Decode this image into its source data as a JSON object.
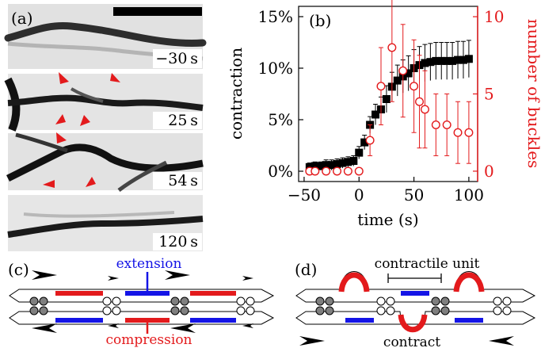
{
  "panel_a": {
    "label": "(a)",
    "frames": [
      {
        "time": "−30 s"
      },
      {
        "time": "25 s"
      },
      {
        "time": "54 s"
      },
      {
        "time": "120 s"
      }
    ]
  },
  "panel_b": {
    "label": "(b)"
  },
  "panel_c": {
    "label": "(c)",
    "extension_label": "extension",
    "compression_label": "compression"
  },
  "panel_d": {
    "label": "(d)",
    "unit_label": "contractile unit",
    "contract_label": "contract"
  },
  "colors": {
    "red": "#e31a1c",
    "blue": "#1414e6",
    "black": "#000000",
    "gray_motor": "#7f7f7f"
  },
  "chart_data": {
    "type": "scatter",
    "xlabel": "time (s)",
    "ylabel_left": "contraction",
    "ylabel_right": "number of buckles",
    "xlim": [
      -55,
      108
    ],
    "ylim_left": [
      -0.01,
      0.16
    ],
    "ylim_right": [
      -0.67,
      10.67
    ],
    "x_ticks": [
      -50,
      0,
      50,
      100
    ],
    "x_tick_labels": [
      "−50",
      "0",
      "50",
      "100"
    ],
    "y_left_ticks": [
      0,
      0.05,
      0.1,
      0.15
    ],
    "y_left_tick_labels": [
      "0%",
      "5%",
      "10%",
      "15%"
    ],
    "y_right_ticks": [
      0,
      5,
      10
    ],
    "y_right_tick_labels": [
      "0",
      "5",
      "10"
    ],
    "series": [
      {
        "marker": "filled-square",
        "axis": "left",
        "x": [
          -45,
          -40,
          -35,
          -30,
          -25,
          -20,
          -15,
          -10,
          -5,
          0,
          5,
          10,
          15,
          20,
          25,
          30,
          35,
          40,
          45,
          50,
          55,
          60,
          65,
          70,
          75,
          80,
          85,
          90,
          95,
          100
        ],
        "y": [
          0.004,
          0.005,
          0.005,
          0.006,
          0.006,
          0.007,
          0.008,
          0.009,
          0.01,
          0.018,
          0.028,
          0.045,
          0.055,
          0.06,
          0.07,
          0.082,
          0.088,
          0.092,
          0.095,
          0.1,
          0.103,
          0.105,
          0.106,
          0.107,
          0.107,
          0.107,
          0.107,
          0.108,
          0.108,
          0.109
        ],
        "err": [
          0.004,
          0.004,
          0.004,
          0.005,
          0.005,
          0.005,
          0.005,
          0.005,
          0.005,
          0.006,
          0.007,
          0.008,
          0.01,
          0.012,
          0.013,
          0.014,
          0.015,
          0.016,
          0.017,
          0.018,
          0.018,
          0.018,
          0.018,
          0.018,
          0.018,
          0.018,
          0.018,
          0.018,
          0.018,
          0.018
        ]
      },
      {
        "marker": "open-circle",
        "axis": "right",
        "x": [
          -45,
          -40,
          -30,
          -20,
          -10,
          0,
          10,
          20,
          30,
          40,
          50,
          55,
          60,
          70,
          80,
          90,
          100
        ],
        "y": [
          0,
          0,
          0,
          0,
          0,
          0,
          2,
          5.5,
          8,
          6.5,
          5.5,
          4.5,
          4,
          3,
          3,
          2.5,
          2.5
        ],
        "err": [
          0,
          0,
          0,
          0,
          0,
          0,
          1,
          2.5,
          3.5,
          3,
          3,
          3,
          2.5,
          2,
          2,
          2,
          2
        ]
      }
    ]
  }
}
